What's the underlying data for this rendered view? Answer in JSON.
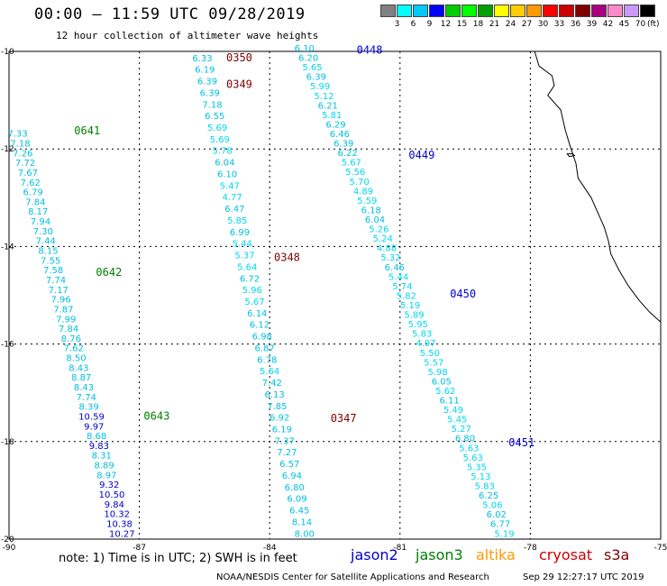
{
  "title": "00:00 – 11:59 UTC 09/28/2019",
  "subtitle": "12 hour collection of altimeter wave heights",
  "legend": {
    "colors": [
      "#808080",
      "#00ffff",
      "#00c8ff",
      "#0000ff",
      "#00cc00",
      "#00ff00",
      "#00a000",
      "#ffff00",
      "#ffcc00",
      "#ff9900",
      "#ff0000",
      "#cc0000",
      "#800000",
      "#aa0080",
      "#ff88cc",
      "#cc99ff",
      "#000000"
    ],
    "ticks": [
      "3",
      "6",
      "9",
      "12",
      "15",
      "18",
      "21",
      "24",
      "27",
      "30",
      "33",
      "36",
      "39",
      "42",
      "45",
      "70"
    ],
    "unit": "(ft)"
  },
  "axes": {
    "lat_labels": [
      "-10",
      "-12",
      "-14",
      "-16",
      "-18",
      "-20"
    ],
    "lon_labels": [
      "-90",
      "-87",
      "-84",
      "-81",
      "-78",
      "-75"
    ]
  },
  "passes": [
    {
      "label": "0641",
      "color": "#008000",
      "start": [
        -89.8,
        -11.75
      ],
      "end": [
        -87.4,
        -19.95
      ],
      "labels_pos": [
        -88.5,
        -11.7
      ],
      "values": [
        "7.33",
        "7.18",
        "7.26",
        "7.72",
        "7.67",
        "7.62",
        "6.79",
        "7.84",
        "8.17",
        "7.94",
        "7.30",
        "7.44",
        "8.15",
        "7.55",
        "7.58",
        "7.74",
        "7.17",
        "7.96",
        "7.87",
        "7.99",
        "7.84",
        "8.76",
        "7.62",
        "8.50",
        "8.43",
        "8.87",
        "8.43",
        "7.74",
        "8.39",
        "10.59",
        "9.97",
        "8.68",
        "9.83",
        "8.31",
        "8.89",
        "8.97",
        "9.32",
        "10.50",
        "9.84",
        "10.32",
        "10.38",
        "10.27"
      ]
    },
    {
      "label": "0642",
      "color": "#008000",
      "labels_pos": [
        -88.0,
        -14.6
      ]
    },
    {
      "label": "0643",
      "color": "#008000",
      "labels_pos": [
        -86.9,
        -17.55
      ]
    },
    {
      "label": "0350",
      "color": "#800000",
      "start": [
        -85.55,
        -10.2
      ],
      "end": [
        -83.2,
        -19.95
      ],
      "labels_pos": [
        -85.0,
        -10.2
      ],
      "values": [
        "6.33",
        "6.19",
        "6.39",
        "6.39",
        "7.18",
        "6.55",
        "5.69",
        "5.69",
        "5.78",
        "6.04",
        "6.10",
        "5.47",
        "4.77",
        "6.47",
        "5.85",
        "6.99",
        "5.44",
        "5.37",
        "5.64",
        "6.72",
        "5.96",
        "5.67",
        "6.14",
        "6.12",
        "6.98",
        "6.87",
        "6.78",
        "5.64",
        "7.42",
        "6.13",
        "7.85",
        "6.92",
        "6.19",
        "7.37",
        "7.27",
        "6.57",
        "6.94",
        "6.80",
        "6.09",
        "6.45",
        "8.14",
        "8.00"
      ]
    },
    {
      "label": "0349",
      "color": "#800000",
      "labels_pos": [
        -85.0,
        -10.75
      ]
    },
    {
      "label": "0348",
      "color": "#800000",
      "labels_pos": [
        -83.9,
        -14.3
      ]
    },
    {
      "label": "0347",
      "color": "#800000",
      "labels_pos": [
        -82.6,
        -17.6
      ]
    },
    {
      "label": "0448",
      "color": "#0000cc",
      "start": [
        -83.2,
        -10.0
      ],
      "end": [
        -78.6,
        -19.95
      ],
      "labels_pos": [
        -82.0,
        -10.05
      ],
      "values": [
        "6.10",
        "6.20",
        "5.65",
        "6.39",
        "5.99",
        "5.12",
        "6.21",
        "5.81",
        "6.29",
        "6.46",
        "6.39",
        "6.22",
        "5.67",
        "5.56",
        "5.70",
        "4.89",
        "5.59",
        "6.18",
        "6.04",
        "5.26",
        "5.24",
        "4.88",
        "5.32",
        "6.46",
        "5.44",
        "5.74",
        "5.82",
        "5.19",
        "5.89",
        "5.95",
        "5.83",
        "4.97",
        "5.50",
        "5.57",
        "5.98",
        "6.05",
        "5.62",
        "6.11",
        "5.49",
        "5.45",
        "5.27",
        "6.80",
        "5.63",
        "5.63",
        "5.35",
        "5.13",
        "5.83",
        "6.25",
        "5.06",
        "6.02",
        "6.77",
        "5.19"
      ]
    },
    {
      "label": "0449",
      "color": "#0000cc",
      "labels_pos": [
        -80.8,
        -12.2
      ]
    },
    {
      "label": "0450",
      "color": "#0000cc",
      "labels_pos": [
        -79.85,
        -15.05
      ]
    },
    {
      "label": "0451",
      "color": "#0000cc",
      "labels_pos": [
        -78.5,
        -18.1
      ]
    }
  ],
  "note": "note: 1) Time is in UTC; 2) SWH is in feet",
  "satellites": [
    {
      "name": "jason2",
      "color": "#0000cc"
    },
    {
      "name": "jason3",
      "color": "#008000"
    },
    {
      "name": "altika",
      "color": "#ff9900"
    },
    {
      "name": "cryosat",
      "color": "#cc0000"
    },
    {
      "name": "s3a",
      "color": "#800000"
    }
  ],
  "credit": "NOAA/NESDIS Center for Satellite Applications and Research",
  "timestamp": "Sep 29 12:27:17 UTC 2019"
}
